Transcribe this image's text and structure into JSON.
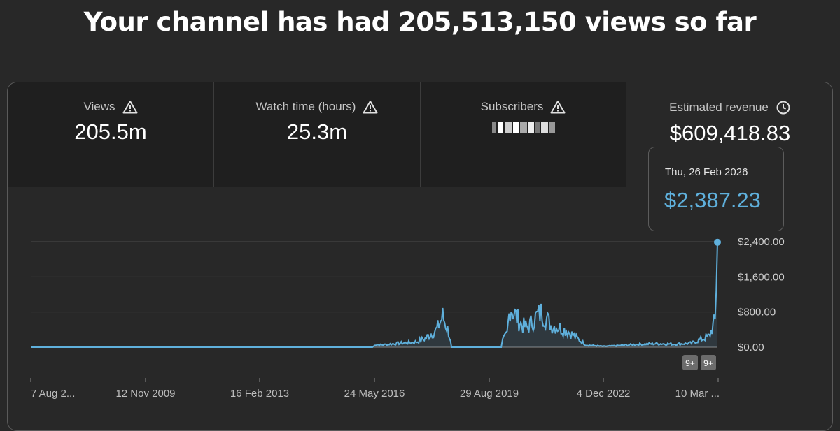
{
  "headline": "Your channel has had 205,513,150 views so far",
  "metrics": [
    {
      "label": "Views",
      "value": "205.5m",
      "icon": "warning-icon"
    },
    {
      "label": "Watch time (hours)",
      "value": "25.3m",
      "icon": "warning-icon"
    },
    {
      "label": "Subscribers",
      "value": "",
      "icon": "warning-icon"
    },
    {
      "label": "Estimated revenue",
      "value": "$609,418.83",
      "icon": "clock-icon"
    }
  ],
  "tooltip": {
    "date": "Thu, 26 Feb 2026",
    "value": "$2,387.23"
  },
  "badges": [
    "9+",
    "9+"
  ],
  "colors": {
    "line": "#5fb0dc",
    "background": "#282828",
    "card": "#1f1f1f"
  },
  "chart_data": {
    "type": "line",
    "title": "",
    "xlabel": "",
    "ylabel": "",
    "x_tick_labels": [
      "7 Aug 2...",
      "12 Nov 2009",
      "16 Feb 2013",
      "24 May 2016",
      "29 Aug 2019",
      "4 Dec 2022",
      "10 Mar ..."
    ],
    "y_tick_labels": [
      "$2,400.00",
      "$1,600.00",
      "$800.00",
      "$0.00"
    ],
    "ylim": [
      0,
      2400
    ],
    "grid": true,
    "series": [
      {
        "values": [
          [
            "2006-08-07",
            0
          ],
          [
            "2016-05-01",
            0
          ],
          [
            "2016-06-01",
            60
          ],
          [
            "2016-08-01",
            50
          ],
          [
            "2016-11-01",
            70
          ],
          [
            "2017-02-01",
            90
          ],
          [
            "2017-05-01",
            100
          ],
          [
            "2017-08-01",
            120
          ],
          [
            "2017-11-01",
            200
          ],
          [
            "2018-01-01",
            300
          ],
          [
            "2018-03-01",
            400
          ],
          [
            "2018-05-01",
            700
          ],
          [
            "2018-07-01",
            350
          ],
          [
            "2018-08-01",
            0
          ],
          [
            "2019-12-31",
            0
          ],
          [
            "2020-01-15",
            150
          ],
          [
            "2020-03-01",
            300
          ],
          [
            "2020-04-01",
            950
          ],
          [
            "2020-06-01",
            700
          ],
          [
            "2020-08-01",
            500
          ],
          [
            "2020-10-01",
            450
          ],
          [
            "2021-01-01",
            700
          ],
          [
            "2021-03-01",
            800
          ],
          [
            "2021-06-01",
            500
          ],
          [
            "2021-09-01",
            450
          ],
          [
            "2021-12-01",
            350
          ],
          [
            "2022-03-01",
            200
          ],
          [
            "2022-06-01",
            50
          ],
          [
            "2022-12-01",
            20
          ],
          [
            "2023-06-01",
            40
          ],
          [
            "2024-01-01",
            70
          ],
          [
            "2024-06-01",
            80
          ],
          [
            "2025-01-01",
            70
          ],
          [
            "2025-06-01",
            90
          ],
          [
            "2025-12-01",
            250
          ],
          [
            "2026-02-01",
            600
          ],
          [
            "2026-02-26",
            2387.23
          ]
        ]
      }
    ]
  }
}
